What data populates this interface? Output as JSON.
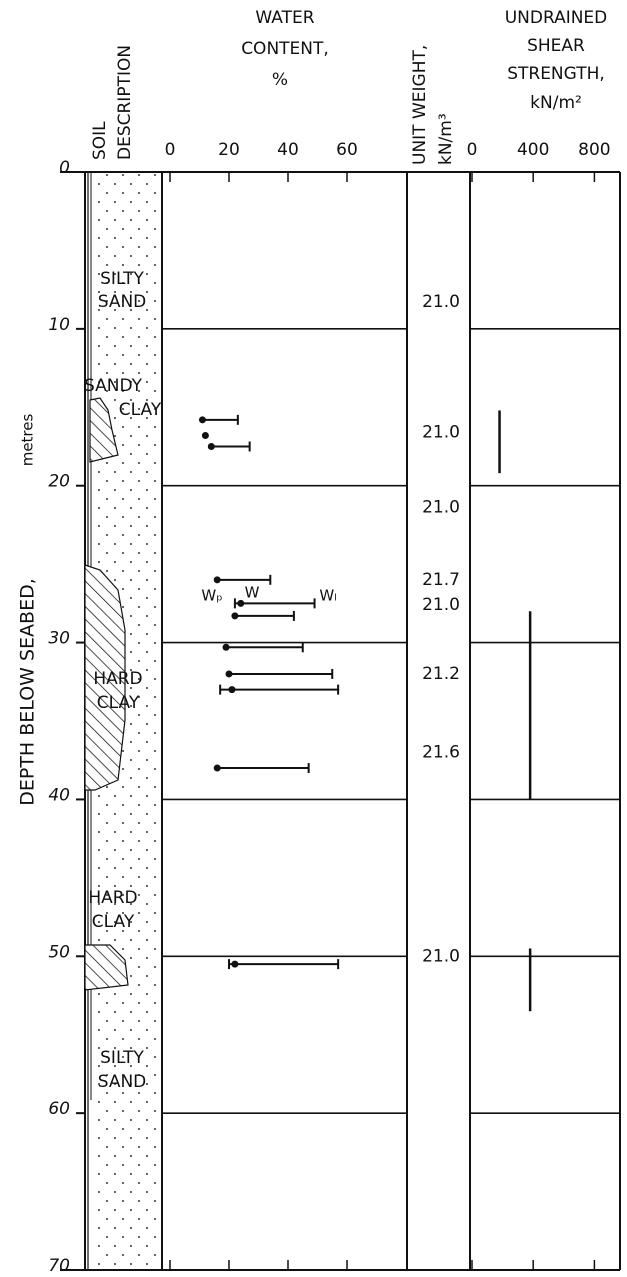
{
  "chart_data": {
    "type": "borehole-log",
    "depth_axis": {
      "label": "DEPTH BELOW SEABED,",
      "unit": "metres",
      "ylim": [
        0,
        70
      ],
      "yticks": [
        0,
        10,
        20,
        30,
        40,
        50,
        60,
        70
      ]
    },
    "soil": {
      "title": [
        "SOIL",
        "DESCRIPTION"
      ],
      "labels": [
        [
          "SILTY",
          "SAND"
        ],
        [
          "SANDY",
          "CLAY"
        ],
        [
          "HARD",
          "CLAY"
        ],
        [
          "HARD",
          "CLAY"
        ],
        [
          "SILTY",
          "SAND"
        ]
      ]
    },
    "water_content": {
      "title": [
        "WATER",
        "CONTENT,",
        "%"
      ],
      "xlim": [
        0,
        80
      ],
      "xticks": [
        0,
        20,
        40,
        60
      ],
      "annotations": [
        "Wₚ",
        "W",
        "Wₗ"
      ],
      "depth": [
        15.8,
        16.8,
        17.5,
        26.0,
        27.5,
        28.3,
        30.3,
        32.0,
        33.0,
        38.0,
        50.5
      ],
      "wP": [
        null,
        null,
        null,
        null,
        22,
        null,
        null,
        null,
        17,
        null,
        20
      ],
      "w": [
        11,
        12,
        14,
        16,
        24,
        22,
        19,
        20,
        21,
        16,
        22
      ],
      "wL": [
        23,
        null,
        27,
        34,
        49,
        42,
        45,
        55,
        57,
        47,
        57
      ]
    },
    "unit_weight": {
      "title": [
        "UNIT WEIGHT,",
        "kN/m³"
      ],
      "depth": [
        8.3,
        16.6,
        21.4,
        26.0,
        27.6,
        32.0,
        37.0,
        50.0
      ],
      "values": [
        21.0,
        21.0,
        21.0,
        21.7,
        21.0,
        21.2,
        21.6,
        21.0
      ],
      "value_labels": [
        "21.0",
        "21.0",
        "21.0",
        "21.7",
        "21.0",
        "21.2",
        "21.6",
        "21.0"
      ]
    },
    "shear_strength": {
      "title": [
        "UNDRAINED",
        "SHEAR",
        "STRENGTH,",
        "kN/m²"
      ],
      "xlim": [
        0,
        1000
      ],
      "xticks": [
        0,
        400,
        800
      ],
      "top": [
        15.2,
        28.0,
        49.5
      ],
      "bottom": [
        19.2,
        40.0,
        53.5
      ],
      "values": [
        180,
        380,
        380
      ]
    }
  }
}
